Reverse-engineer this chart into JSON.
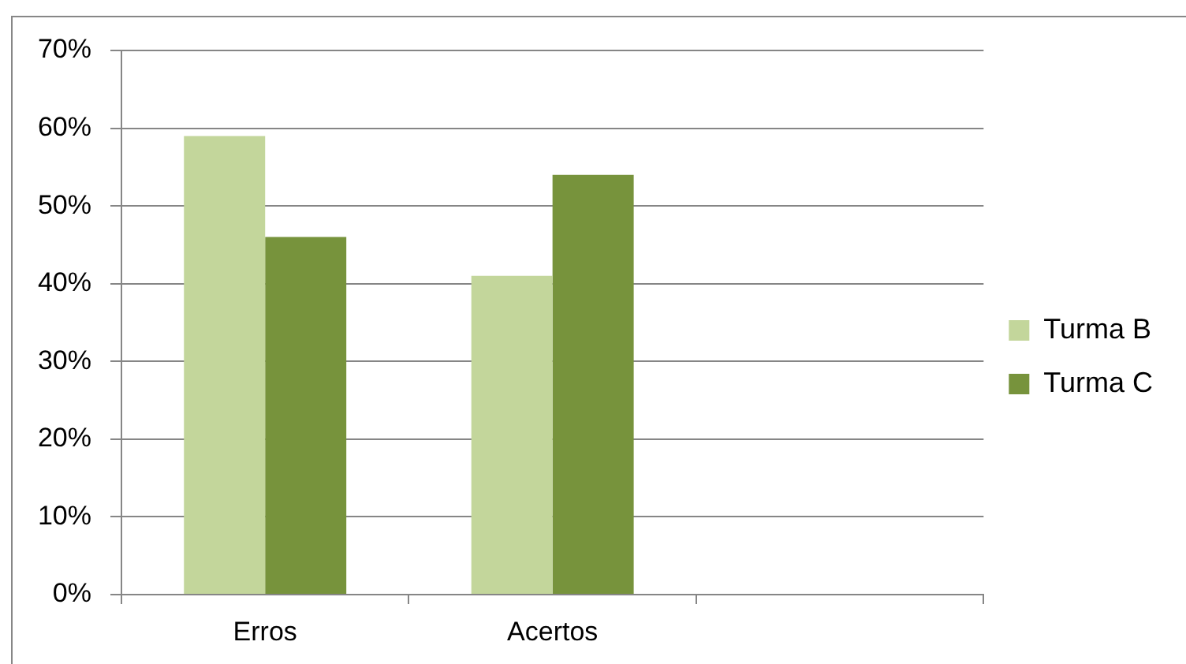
{
  "chart_data": {
    "type": "bar",
    "categories": [
      "Erros",
      "Acertos",
      null
    ],
    "series": [
      {
        "name": "Turma B",
        "color": "#c3d69b",
        "values": [
          59,
          41,
          null
        ]
      },
      {
        "name": "Turma C",
        "color": "#77933c",
        "values": [
          46,
          54,
          null
        ]
      }
    ],
    "ylim": [
      0,
      70
    ],
    "yticks": [
      {
        "value": 0,
        "label": "0%"
      },
      {
        "value": 10,
        "label": "10%"
      },
      {
        "value": 20,
        "label": "20%"
      },
      {
        "value": 30,
        "label": "30%"
      },
      {
        "value": 40,
        "label": "40%"
      },
      {
        "value": 50,
        "label": "50%"
      },
      {
        "value": 60,
        "label": "60%"
      },
      {
        "value": 70,
        "label": "70%"
      }
    ],
    "grid": "y",
    "legend": "right"
  }
}
